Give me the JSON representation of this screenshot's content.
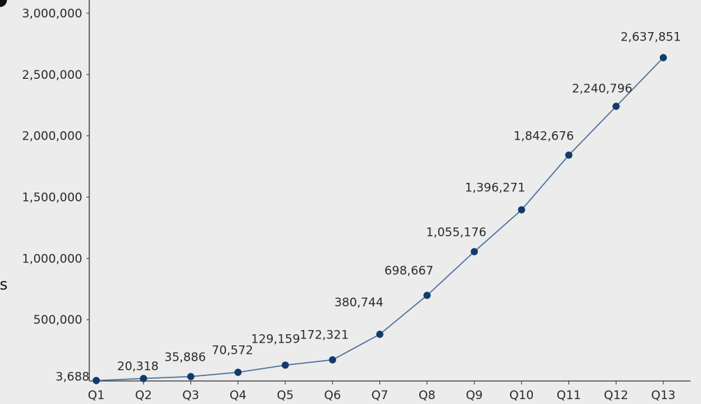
{
  "chart_data": {
    "type": "line",
    "title": "",
    "xlabel": "",
    "ylabel": "es",
    "categories": [
      "Q1",
      "Q2",
      "Q3",
      "Q4",
      "Q5",
      "Q6",
      "Q7",
      "Q8",
      "Q9",
      "Q10",
      "Q11",
      "Q12",
      "Q13"
    ],
    "series": [
      {
        "values": [
          3688,
          20318,
          35886,
          70572,
          129159,
          172321,
          380744,
          698667,
          1055176,
          1396271,
          1842676,
          2240796,
          2637851
        ],
        "labels": [
          "3,688",
          "20,318",
          "35,886",
          "70,572",
          "129,159",
          "172,321",
          "380,744",
          "698,667",
          "1,055,176",
          "1,396,271",
          "1,842,676",
          "2,240,796",
          "2,637,851"
        ]
      }
    ],
    "y_ticks": [
      {
        "value": 500000,
        "label": "500,000"
      },
      {
        "value": 1000000,
        "label": "1,000,000"
      },
      {
        "value": 1500000,
        "label": "1,500,000"
      },
      {
        "value": 2000000,
        "label": "2,000,000"
      },
      {
        "value": 2500000,
        "label": "2,500,000"
      },
      {
        "value": 3000000,
        "label": "3,000,000"
      }
    ],
    "ylim": [
      0,
      3000000
    ],
    "grid": false,
    "legend": "none",
    "colors": {
      "line": "#4a6f9b",
      "marker": "#123a6b",
      "axis": "#333333",
      "background": "#ececec"
    }
  }
}
